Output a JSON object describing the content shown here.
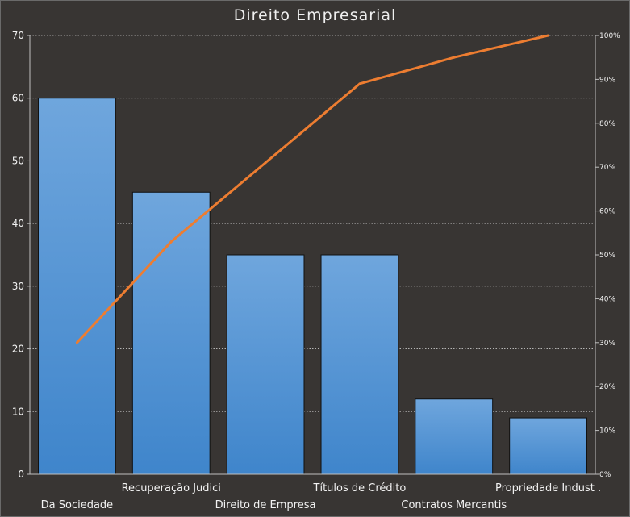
{
  "chart_data": {
    "type": "bar",
    "title": "Direito Empresarial",
    "categories": [
      "Da Sociedade",
      "Recuperação Judici",
      "Direito de Empresa",
      "Títulos de Crédito",
      "Contratos Mercantis",
      "Propriedade  Indust ."
    ],
    "series": [
      {
        "kind": "bar",
        "values": [
          60,
          45,
          35,
          35,
          12,
          9
        ],
        "color": "#5b9bd5"
      },
      {
        "kind": "line",
        "axis": "right",
        "values": [
          0.3,
          0.53,
          0.71,
          0.89,
          0.95,
          1.0
        ],
        "color": "#ed7d31"
      }
    ],
    "ylim": [
      0,
      70
    ],
    "yticks": [
      0,
      10,
      20,
      30,
      40,
      50,
      60,
      70
    ],
    "y2lim": [
      0,
      1
    ],
    "y2ticks": [
      "0%",
      "10%",
      "20%",
      "30%",
      "40%",
      "50%",
      "60%",
      "70%",
      "80%",
      "90%",
      "100%"
    ],
    "grid": true,
    "colors": {
      "background": "#383533",
      "grid": "#c8c8c8",
      "axis": "#bfbfbf",
      "text": "#f2f2f2"
    }
  }
}
